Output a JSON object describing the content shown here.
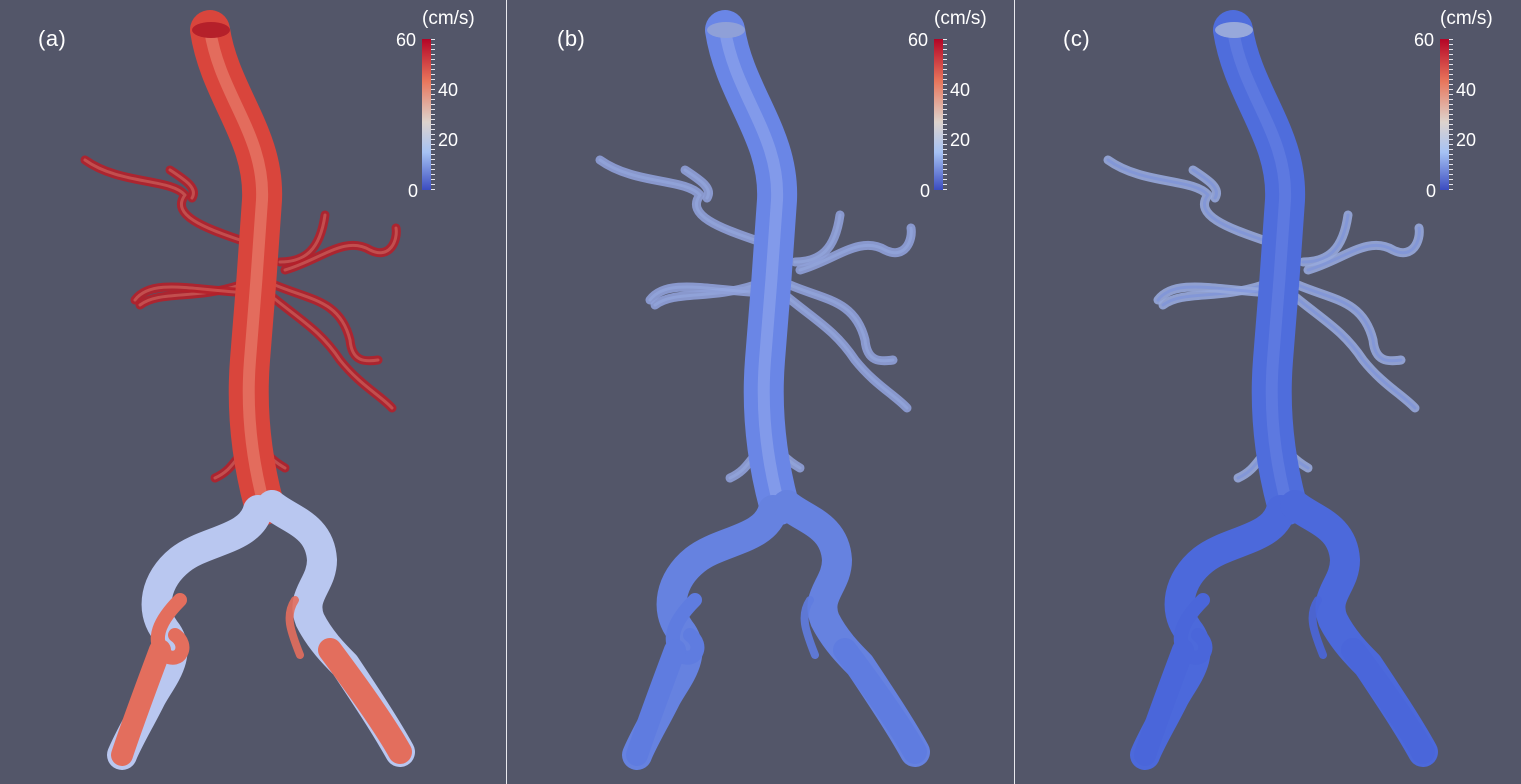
{
  "panels": [
    {
      "label": "(a)",
      "colorbar": {
        "unit": "(cm/s)",
        "ticks": [
          "60",
          "40",
          "20",
          "0"
        ]
      },
      "colors": {
        "trunk": "#d9453c",
        "trunk_light": "#ef9b86",
        "branch": "#b5202a",
        "iliac_upper": "#b9c7f0",
        "iliac_lower": "#e36e5d"
      }
    },
    {
      "label": "(b)",
      "colorbar": {
        "unit": "(cm/s)",
        "ticks": [
          "60",
          "40",
          "20",
          "0"
        ]
      },
      "colors": {
        "trunk": "#6a86e6",
        "trunk_light": "#9fb4ef",
        "branch": "#8fa0d8",
        "iliac_upper": "#6682e0",
        "iliac_lower": "#5f7ce0"
      }
    },
    {
      "label": "(c)",
      "colorbar": {
        "unit": "(cm/s)",
        "ticks": [
          "60",
          "40",
          "20",
          "0"
        ]
      },
      "colors": {
        "trunk": "#4f6ddc",
        "trunk_light": "#6e88e4",
        "branch": "#97a8db",
        "iliac_upper": "#4c69db",
        "iliac_lower": "#4a66da"
      }
    }
  ],
  "colorbar_range": [
    0,
    60
  ]
}
